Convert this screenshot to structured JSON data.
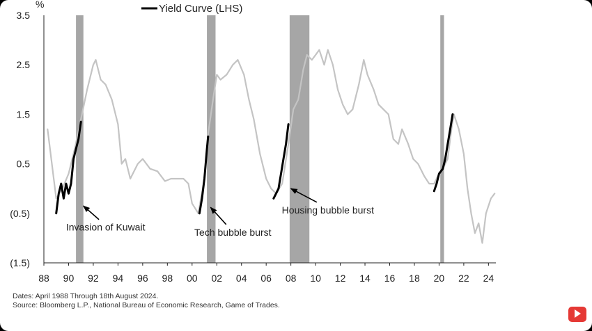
{
  "chart_data": {
    "type": "line",
    "unit_label": "%",
    "legend": "Yield Curve (LHS)",
    "legend_position": "top-center",
    "grid": false,
    "y_ticks": [
      "3.5",
      "2.5",
      "1.5",
      "0.5",
      "(0.5)",
      "(1.5)"
    ],
    "y_tick_values": [
      3.5,
      2.5,
      1.5,
      0.5,
      -0.5,
      -1.5
    ],
    "ylim": [
      -1.5,
      3.5
    ],
    "x_ticks": [
      "88",
      "90",
      "92",
      "94",
      "96",
      "98",
      "00",
      "02",
      "04",
      "06",
      "08",
      "10",
      "12",
      "14",
      "16",
      "18",
      "20",
      "22",
      "24"
    ],
    "x_tick_values": [
      1988,
      1990,
      1992,
      1994,
      1996,
      1998,
      2000,
      2002,
      2004,
      2006,
      2008,
      2010,
      2012,
      2014,
      2016,
      2018,
      2020,
      2022,
      2024
    ],
    "xlim": [
      1988,
      2024.6
    ],
    "recessions": [
      {
        "start": 1990.6,
        "end": 1991.2
      },
      {
        "start": 2001.2,
        "end": 2001.9
      },
      {
        "start": 2007.9,
        "end": 2009.5
      },
      {
        "start": 2020.1,
        "end": 2020.4
      }
    ],
    "series": [
      {
        "name": "Yield Curve (LHS)",
        "color": "#c4c4c4",
        "points": [
          [
            1988.3,
            1.2
          ],
          [
            1988.6,
            0.6
          ],
          [
            1989.0,
            -0.2
          ],
          [
            1989.5,
            0.0
          ],
          [
            1990.0,
            0.3
          ],
          [
            1990.5,
            0.8
          ],
          [
            1991.0,
            1.4
          ],
          [
            1991.5,
            2.0
          ],
          [
            1992.0,
            2.5
          ],
          [
            1992.2,
            2.6
          ],
          [
            1992.6,
            2.2
          ],
          [
            1993.0,
            2.1
          ],
          [
            1993.5,
            1.8
          ],
          [
            1994.0,
            1.3
          ],
          [
            1994.3,
            0.5
          ],
          [
            1994.6,
            0.6
          ],
          [
            1995.0,
            0.2
          ],
          [
            1995.6,
            0.5
          ],
          [
            1996.0,
            0.6
          ],
          [
            1996.6,
            0.4
          ],
          [
            1997.2,
            0.35
          ],
          [
            1997.8,
            0.15
          ],
          [
            1998.3,
            0.2
          ],
          [
            1998.8,
            0.2
          ],
          [
            1999.3,
            0.2
          ],
          [
            1999.7,
            0.1
          ],
          [
            2000.0,
            -0.3
          ],
          [
            2000.5,
            -0.5
          ],
          [
            2001.0,
            0.2
          ],
          [
            2001.3,
            1.1
          ],
          [
            2001.7,
            1.8
          ],
          [
            2002.0,
            2.3
          ],
          [
            2002.3,
            2.2
          ],
          [
            2002.8,
            2.3
          ],
          [
            2003.3,
            2.5
          ],
          [
            2003.7,
            2.6
          ],
          [
            2004.2,
            2.3
          ],
          [
            2004.6,
            1.8
          ],
          [
            2005.0,
            1.4
          ],
          [
            2005.5,
            0.7
          ],
          [
            2006.0,
            0.2
          ],
          [
            2006.4,
            0.0
          ],
          [
            2006.8,
            -0.1
          ],
          [
            2007.3,
            0.1
          ],
          [
            2007.8,
            0.9
          ],
          [
            2008.2,
            1.6
          ],
          [
            2008.6,
            1.8
          ],
          [
            2009.0,
            2.4
          ],
          [
            2009.3,
            2.7
          ],
          [
            2009.7,
            2.6
          ],
          [
            2010.0,
            2.7
          ],
          [
            2010.3,
            2.8
          ],
          [
            2010.7,
            2.5
          ],
          [
            2011.0,
            2.8
          ],
          [
            2011.4,
            2.5
          ],
          [
            2011.8,
            2.0
          ],
          [
            2012.2,
            1.7
          ],
          [
            2012.6,
            1.5
          ],
          [
            2013.0,
            1.6
          ],
          [
            2013.5,
            2.1
          ],
          [
            2013.9,
            2.6
          ],
          [
            2014.2,
            2.3
          ],
          [
            2014.7,
            2.0
          ],
          [
            2015.1,
            1.7
          ],
          [
            2015.5,
            1.6
          ],
          [
            2015.9,
            1.5
          ],
          [
            2016.3,
            1.0
          ],
          [
            2016.7,
            0.9
          ],
          [
            2017.0,
            1.2
          ],
          [
            2017.5,
            0.9
          ],
          [
            2017.9,
            0.6
          ],
          [
            2018.3,
            0.5
          ],
          [
            2018.8,
            0.25
          ],
          [
            2019.2,
            0.1
          ],
          [
            2019.6,
            0.1
          ],
          [
            2020.0,
            0.3
          ],
          [
            2020.3,
            0.4
          ],
          [
            2020.7,
            0.6
          ],
          [
            2021.0,
            1.2
          ],
          [
            2021.2,
            1.5
          ],
          [
            2021.6,
            1.2
          ],
          [
            2022.0,
            0.7
          ],
          [
            2022.3,
            0.0
          ],
          [
            2022.6,
            -0.5
          ],
          [
            2022.9,
            -0.9
          ],
          [
            2023.2,
            -0.7
          ],
          [
            2023.5,
            -1.1
          ],
          [
            2023.8,
            -0.5
          ],
          [
            2024.2,
            -0.2
          ],
          [
            2024.5,
            -0.1
          ]
        ]
      },
      {
        "name": "Yield Curve (LHS)",
        "color": "#000000",
        "points": [
          [
            1989.0,
            -0.5
          ],
          [
            1989.2,
            -0.1
          ],
          [
            1989.4,
            0.1
          ],
          [
            1989.6,
            -0.2
          ],
          [
            1989.8,
            0.1
          ],
          [
            1990.0,
            -0.1
          ],
          [
            1990.2,
            0.1
          ],
          [
            1990.4,
            0.6
          ],
          [
            1990.6,
            0.8
          ],
          [
            1990.8,
            1.0
          ],
          [
            1991.0,
            1.35
          ],
          null,
          [
            2000.6,
            -0.5
          ],
          [
            2000.8,
            -0.2
          ],
          [
            2001.0,
            0.2
          ],
          [
            2001.2,
            0.8
          ],
          [
            2001.3,
            1.05
          ],
          null,
          [
            2006.6,
            -0.2
          ],
          [
            2006.8,
            -0.1
          ],
          [
            2007.0,
            0.0
          ],
          [
            2007.2,
            0.3
          ],
          [
            2007.4,
            0.6
          ],
          [
            2007.6,
            0.9
          ],
          [
            2007.8,
            1.3
          ],
          null,
          [
            2019.6,
            -0.05
          ],
          [
            2019.8,
            0.1
          ],
          [
            2020.0,
            0.3
          ],
          [
            2020.3,
            0.4
          ],
          [
            2020.5,
            0.6
          ],
          [
            2020.7,
            0.9
          ],
          [
            2020.9,
            1.2
          ],
          [
            2021.1,
            1.5
          ]
        ]
      }
    ],
    "annotations": [
      {
        "text": "Invasion of Kuwait",
        "x": 1993.0,
        "y": -0.85,
        "arrow_to": [
          1991.2,
          -0.35
        ]
      },
      {
        "text": "Tech bubble burst",
        "x": 2003.3,
        "y": -0.95,
        "arrow_to": [
          2001.5,
          -0.38
        ]
      },
      {
        "text": "Housing bubble burst",
        "x": 2011.0,
        "y": -0.5,
        "arrow_to": [
          2008.0,
          0.0
        ]
      }
    ]
  },
  "footer": {
    "dates": "Dates: April 1988 Through 18th August 2024.",
    "source": "Source: Bloomberg L.P., National Bureau of Economic Research, Game of Trades."
  }
}
